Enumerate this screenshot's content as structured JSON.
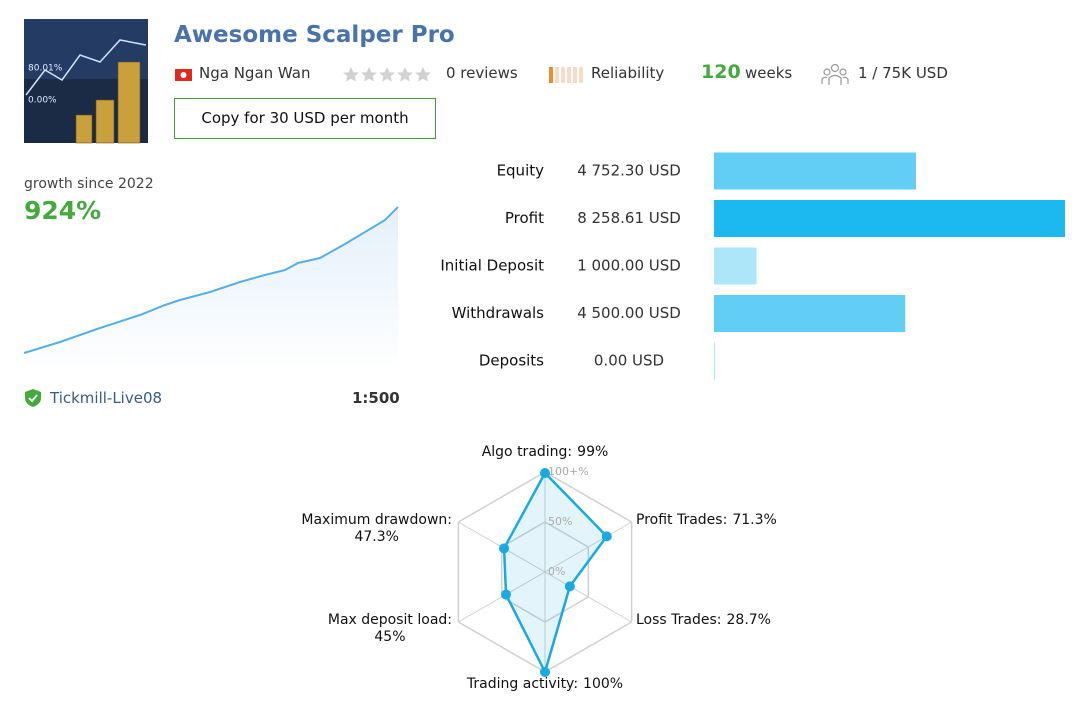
{
  "header": {
    "title": "Awesome Scalper Pro",
    "author": "Nga Ngan Wan",
    "reviews": "0 reviews",
    "reliability": "Reliability",
    "weeks": 120,
    "weeks_label": "weeks",
    "subscribers": "1 / 75K USD",
    "copy_button": "Copy for 30 USD per month"
  },
  "growth": {
    "label": "growth since 2022",
    "value": "924%",
    "broker": "Tickmill-Live08",
    "leverage": "1:500"
  },
  "stats": [
    {
      "label": "Equity",
      "value": 4752.3,
      "value_label": "4 752.30 USD",
      "color": "#62cdf5"
    },
    {
      "label": "Profit",
      "value": 8258.61,
      "value_label": "8 258.61 USD",
      "color": "#1cb9f0"
    },
    {
      "label": "Initial Deposit",
      "value": 1000.0,
      "value_label": "1 000.00 USD",
      "color": "#ade5f9"
    },
    {
      "label": "Withdrawals",
      "value": 4500.0,
      "value_label": "4 500.00 USD",
      "color": "#62cdf5"
    },
    {
      "label": "Deposits",
      "value": 0.0,
      "value_label": "0.00 USD",
      "color": "#ade5f9"
    }
  ],
  "radar": {
    "lim": [
      0,
      100
    ],
    "color": "#1ba9e1",
    "ticks": [
      {
        "value": 100,
        "label": "100+%"
      },
      {
        "value": 50,
        "label": "50%"
      },
      {
        "value": 0,
        "label": "0%"
      }
    ],
    "axes": [
      {
        "label": "Algo trading:",
        "value": 99,
        "value_label": "99%"
      },
      {
        "label": "Profit Trades:",
        "value": 71.3,
        "value_label": "71.3%"
      },
      {
        "label": "Loss Trades:",
        "value": 28.7,
        "value_label": "28.7%"
      },
      {
        "label": "Trading activity:",
        "value": 100,
        "value_label": "100%"
      },
      {
        "label": "Max deposit load:",
        "value": 45,
        "value_label": "45%"
      },
      {
        "label": "Maximum drawdown:",
        "value": 47.3,
        "value_label": "47.3%"
      }
    ]
  }
}
